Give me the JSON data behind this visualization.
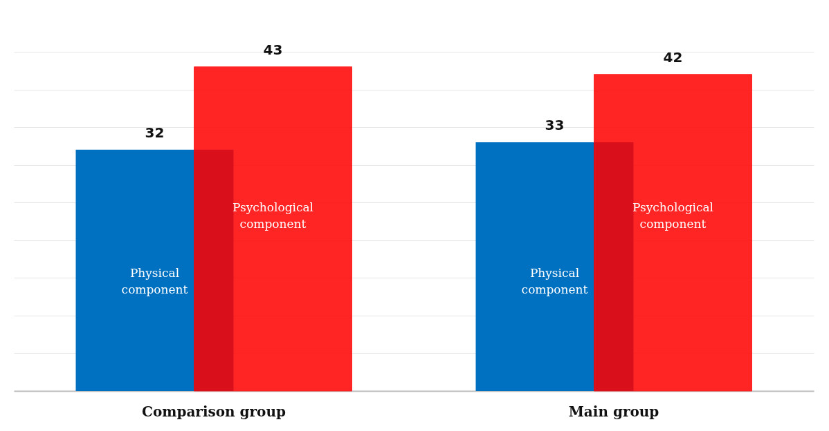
{
  "chart_data": {
    "type": "bar",
    "categories": [
      "Comparison group",
      "Main group"
    ],
    "series": [
      {
        "name": "Physical component",
        "color": "#0070c0",
        "values": [
          32,
          33
        ]
      },
      {
        "name": "Psychological component",
        "color": "#ff0000",
        "values": [
          43,
          42
        ]
      }
    ],
    "ylim": [
      0,
      45
    ],
    "yticks": [
      0,
      5,
      10,
      15,
      20,
      25,
      30,
      35,
      40,
      45
    ],
    "grid": "y",
    "tick_labels": "x",
    "data_labels": true
  }
}
